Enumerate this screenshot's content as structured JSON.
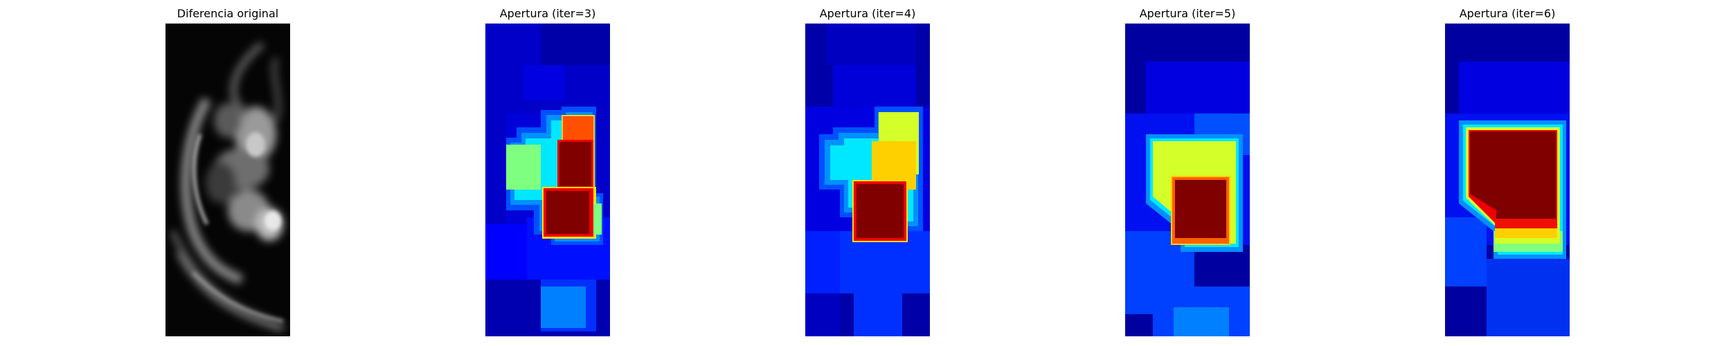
{
  "panels": [
    {
      "title": "Diferencia original",
      "icon": "grayscale-difference-image",
      "colormap": "gray"
    },
    {
      "title": "Apertura (iter=3)",
      "icon": "jet-opening-image",
      "colormap": "jet"
    },
    {
      "title": "Apertura (iter=4)",
      "icon": "jet-opening-image",
      "colormap": "jet"
    },
    {
      "title": "Apertura (iter=5)",
      "icon": "jet-opening-image",
      "colormap": "jet"
    },
    {
      "title": "Apertura (iter=6)",
      "icon": "jet-opening-image",
      "colormap": "jet"
    }
  ],
  "colors": {
    "jet_dark_blue": "#00008f",
    "jet_blue": "#0000ff",
    "jet_mid_blue": "#0050ff",
    "jet_light_blue": "#0090ff",
    "jet_cyan": "#00e8ff",
    "jet_green": "#7fff7f",
    "jet_yellow_green": "#d4ff28",
    "jet_yellow": "#ffd000",
    "jet_orange": "#ff5000",
    "jet_red": "#ee0000",
    "jet_dark_red": "#800000"
  }
}
